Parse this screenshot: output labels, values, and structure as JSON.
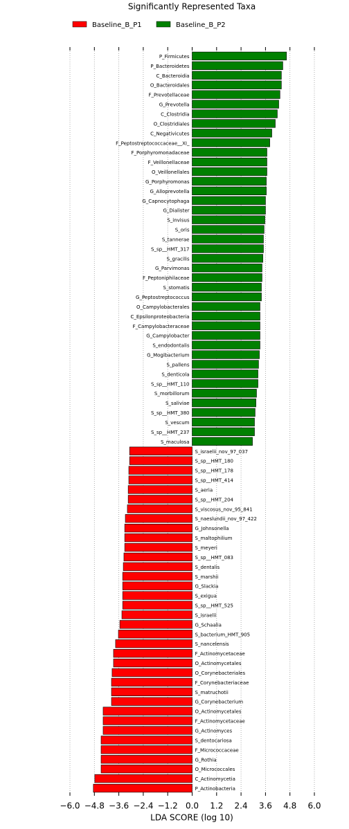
{
  "chart_data": {
    "type": "bar",
    "orientation": "horizontal",
    "title": "Significantly Represented Taxa",
    "x_label": "LDA SCORE (log 10)",
    "categories": [
      "P_Firmicutes",
      "P_Bacteroidetes",
      "C_Bacteroidia",
      "O_Bacteroidales",
      "F_Prevotellaceae",
      "G_Prevotella",
      "C_Clostridia",
      "O_Clostridiales",
      "C_Negativicutes",
      "F_Peptostreptococcaceae__XI_",
      "F_Porphyromonadaceae",
      "F_Veillonellaceae",
      "O_Veillonellales",
      "G_Porphyromonas",
      "G_Alloprevotella",
      "G_Capnocytophaga",
      "G_Dialister",
      "S_invisus",
      "S_oris",
      "S_tannerae",
      "S_sp__HMT_317",
      "S_gracilis",
      "G_Parvimonas",
      "F_Peptoniphilaceae",
      "S_stomatis",
      "G_Peptostreptococcus",
      "O_Campylobacterales",
      "C_Epsilonproteobacteria",
      "F_Campylobacteraceae",
      "G_Campylobacter",
      "S_endodontalis",
      "G_Mogibacterium",
      "S_pallens",
      "S_denticola",
      "S_sp__HMT_110",
      "S_morbillorum",
      "S_saliviae",
      "S_sp__HMT_380",
      "S_vescum",
      "S_sp__HMT_237",
      "S_maculosa",
      "S_israelii_nov_97_037",
      "S_sp__HMT_180",
      "S_sp__HMT_178",
      "S_sp__HMT_414",
      "S_aeria",
      "S_sp__HMT_204",
      "S_viscosus_nov_95_841",
      "S_naeslundii_nov_97_422",
      "G_Johnsonella",
      "S_maltophilium",
      "S_meyeri",
      "S_sp__HMT_083",
      "S_dentalis",
      "S_marshii",
      "G_Slackia",
      "S_exigua",
      "S_sp__HMT_525",
      "S_israelii",
      "G_Schaalia",
      "S_bacterium_HMT_905",
      "S_nancelensis",
      "F_Actinomycetaceae",
      "O_Actinomycetales",
      "O_Corynebacteriales",
      "F_Corynebacteriaceae",
      "S_matruchotii",
      "G_Corynebacterium",
      "O_Actinomycetales",
      "F_Actinomycetaceae",
      "G_Actinomyces",
      "S_dentocariosa",
      "F_Micrococcaceae",
      "G_Rothia",
      "O_Micrococcales",
      "C_Actinomycetia",
      "P_Actinobacteria"
    ],
    "series": [
      {
        "name": "Baseline_B_P1",
        "color": "#ff0000",
        "values": [
          null,
          null,
          null,
          null,
          null,
          null,
          null,
          null,
          null,
          null,
          null,
          null,
          null,
          null,
          null,
          null,
          null,
          null,
          null,
          null,
          null,
          null,
          null,
          null,
          null,
          null,
          null,
          null,
          null,
          null,
          null,
          null,
          null,
          null,
          null,
          null,
          null,
          null,
          null,
          null,
          null,
          -3.07,
          -3.07,
          -3.11,
          -3.11,
          -3.14,
          -3.14,
          -3.18,
          -3.28,
          -3.31,
          -3.31,
          -3.31,
          -3.35,
          -3.38,
          -3.41,
          -3.41,
          -3.41,
          -3.41,
          -3.45,
          -3.55,
          -3.62,
          -3.76,
          -3.86,
          -3.86,
          -3.93,
          -3.96,
          -3.96,
          -3.96,
          -4.37,
          -4.37,
          -4.37,
          -4.47,
          -4.47,
          -4.47,
          -4.47,
          -4.78,
          -4.85
        ]
      },
      {
        "name": "Baseline_B_P2",
        "color": "#008000",
        "values": [
          4.63,
          4.45,
          4.38,
          4.38,
          4.31,
          4.25,
          4.18,
          4.08,
          3.91,
          3.81,
          3.67,
          3.67,
          3.67,
          3.64,
          3.64,
          3.6,
          3.6,
          3.57,
          3.53,
          3.5,
          3.5,
          3.47,
          3.43,
          3.43,
          3.4,
          3.4,
          3.33,
          3.33,
          3.33,
          3.33,
          3.33,
          3.3,
          3.26,
          3.23,
          3.23,
          3.16,
          3.13,
          3.09,
          3.06,
          3.06,
          2.96,
          null,
          null,
          null,
          null,
          null,
          null,
          null,
          null,
          null,
          null,
          null,
          null,
          null,
          null,
          null,
          null,
          null,
          null,
          null,
          null,
          null,
          null,
          null,
          null,
          null,
          null,
          null,
          null,
          null,
          null,
          null,
          null,
          null,
          null,
          null,
          null
        ]
      }
    ],
    "xlim": [
      -6,
      6
    ],
    "xticks": [
      {
        "value": -6,
        "label": "−6.0"
      },
      {
        "value": -4.8,
        "label": "−4.8"
      },
      {
        "value": -3.6,
        "label": "−3.6"
      },
      {
        "value": -2.4,
        "label": "−2.4"
      },
      {
        "value": -1.2,
        "label": "−1.2"
      },
      {
        "value": 0,
        "label": "0.0"
      },
      1.2,
      2.4,
      3.6,
      4.8,
      {
        "value": 6,
        "label": "6.0"
      }
    ],
    "grid": true,
    "legend": "top"
  }
}
